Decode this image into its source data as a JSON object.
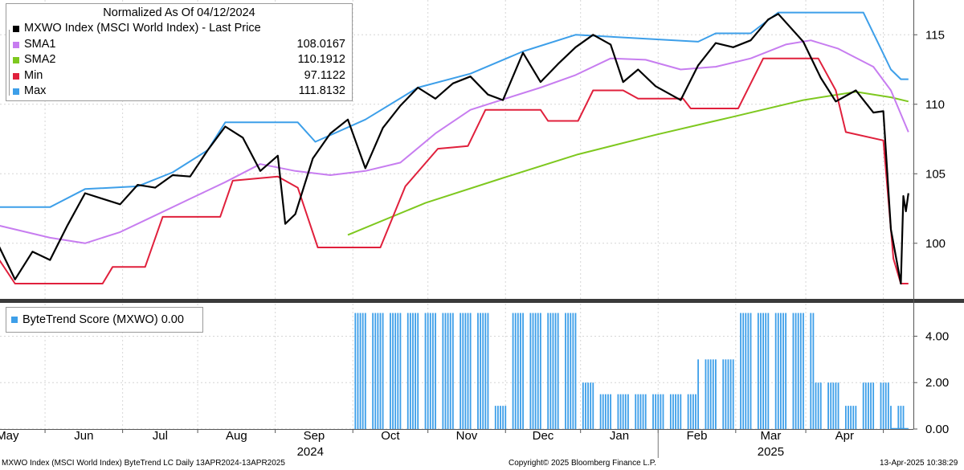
{
  "chart_data": [
    {
      "type": "line",
      "title": "Normalized As Of 04/12/2024",
      "x_axis": {
        "months": [
          "May",
          "Jun",
          "Jul",
          "Aug",
          "Sep",
          "Oct",
          "Nov",
          "Dec",
          "Jan",
          "Feb",
          "Mar",
          "Apr"
        ],
        "years": [
          "2024",
          "2025"
        ],
        "start": "2024-04-13",
        "end": "2025-04-13"
      },
      "ylim": [
        96,
        117.5
      ],
      "yticks": [
        100,
        105,
        110,
        115
      ],
      "series": [
        {
          "name": "MXWO Index (MSCI World Index) - Last Price",
          "color": "#000000",
          "legend_value": "",
          "points": [
            [
              "2024-04-12",
              100
            ],
            [
              "2024-04-19",
              97.4
            ],
            [
              "2024-04-26",
              99.4
            ],
            [
              "2024-05-03",
              98.8
            ],
            [
              "2024-05-10",
              101.3
            ],
            [
              "2024-05-17",
              103.6
            ],
            [
              "2024-05-24",
              103.2
            ],
            [
              "2024-05-31",
              102.8
            ],
            [
              "2024-06-07",
              104.2
            ],
            [
              "2024-06-14",
              104.0
            ],
            [
              "2024-06-21",
              104.9
            ],
            [
              "2024-06-28",
              104.8
            ],
            [
              "2024-07-05",
              106.7
            ],
            [
              "2024-07-12",
              108.4
            ],
            [
              "2024-07-19",
              107.6
            ],
            [
              "2024-07-26",
              105.2
            ],
            [
              "2024-08-02",
              106.3
            ],
            [
              "2024-08-05",
              101.4
            ],
            [
              "2024-08-09",
              102.1
            ],
            [
              "2024-08-16",
              106.1
            ],
            [
              "2024-08-23",
              107.9
            ],
            [
              "2024-08-30",
              108.9
            ],
            [
              "2024-09-06",
              105.4
            ],
            [
              "2024-09-13",
              108.3
            ],
            [
              "2024-09-20",
              109.9
            ],
            [
              "2024-09-27",
              111.2
            ],
            [
              "2024-10-04",
              110.4
            ],
            [
              "2024-10-11",
              111.5
            ],
            [
              "2024-10-18",
              112.0
            ],
            [
              "2024-10-25",
              110.7
            ],
            [
              "2024-10-31",
              110.3
            ],
            [
              "2024-11-08",
              113.7
            ],
            [
              "2024-11-15",
              111.6
            ],
            [
              "2024-11-22",
              112.9
            ],
            [
              "2024-11-29",
              114.1
            ],
            [
              "2024-12-06",
              115.0
            ],
            [
              "2024-12-13",
              114.3
            ],
            [
              "2024-12-18",
              111.6
            ],
            [
              "2024-12-24",
              112.5
            ],
            [
              "2024-12-31",
              111.3
            ],
            [
              "2025-01-10",
              110.3
            ],
            [
              "2025-01-17",
              112.8
            ],
            [
              "2025-01-24",
              114.4
            ],
            [
              "2025-01-31",
              114.1
            ],
            [
              "2025-02-07",
              114.6
            ],
            [
              "2025-02-14",
              116.1
            ],
            [
              "2025-02-18",
              116.5
            ],
            [
              "2025-02-28",
              114.5
            ],
            [
              "2025-03-07",
              111.9
            ],
            [
              "2025-03-13",
              110.2
            ],
            [
              "2025-03-21",
              111.0
            ],
            [
              "2025-03-28",
              109.4
            ],
            [
              "2025-04-01",
              109.5
            ],
            [
              "2025-04-04",
              101.0
            ],
            [
              "2025-04-08",
              97.1
            ],
            [
              "2025-04-09",
              103.4
            ],
            [
              "2025-04-10",
              102.3
            ],
            [
              "2025-04-11",
              103.6
            ]
          ]
        },
        {
          "name": "SMA1",
          "color": "#c77df0",
          "legend_value": "108.0167",
          "points": [
            [
              "2024-04-12",
              101.3
            ],
            [
              "2024-05-03",
              100.4
            ],
            [
              "2024-05-17",
              100.0
            ],
            [
              "2024-05-31",
              100.8
            ],
            [
              "2024-06-14",
              102.0
            ],
            [
              "2024-06-28",
              103.2
            ],
            [
              "2024-07-12",
              104.4
            ],
            [
              "2024-07-26",
              105.7
            ],
            [
              "2024-08-09",
              105.2
            ],
            [
              "2024-08-23",
              104.9
            ],
            [
              "2024-09-06",
              105.2
            ],
            [
              "2024-09-20",
              105.8
            ],
            [
              "2024-10-04",
              107.9
            ],
            [
              "2024-10-18",
              109.6
            ],
            [
              "2024-11-01",
              110.4
            ],
            [
              "2024-11-15",
              111.2
            ],
            [
              "2024-11-29",
              112.1
            ],
            [
              "2024-12-13",
              113.3
            ],
            [
              "2024-12-27",
              113.2
            ],
            [
              "2025-01-10",
              112.5
            ],
            [
              "2025-01-24",
              112.7
            ],
            [
              "2025-02-07",
              113.3
            ],
            [
              "2025-02-21",
              114.3
            ],
            [
              "2025-03-03",
              114.6
            ],
            [
              "2025-03-14",
              114.0
            ],
            [
              "2025-03-28",
              112.7
            ],
            [
              "2025-04-04",
              111.0
            ],
            [
              "2025-04-11",
              108.0
            ]
          ]
        },
        {
          "name": "SMA2",
          "color": "#7ec81f",
          "legend_value": "110.1912",
          "points": [
            [
              "2024-08-30",
              100.6
            ],
            [
              "2024-09-30",
              102.9
            ],
            [
              "2024-10-31",
              104.7
            ],
            [
              "2024-11-30",
              106.4
            ],
            [
              "2024-12-31",
              107.8
            ],
            [
              "2025-01-31",
              109.1
            ],
            [
              "2025-02-28",
              110.3
            ],
            [
              "2025-03-21",
              110.9
            ],
            [
              "2025-04-04",
              110.5
            ],
            [
              "2025-04-11",
              110.2
            ]
          ]
        },
        {
          "name": "Min",
          "color": "#e0203c",
          "legend_value": "97.1122",
          "points": [
            [
              "2024-04-12",
              99.0
            ],
            [
              "2024-04-19",
              97.1
            ],
            [
              "2024-05-24",
              97.1
            ],
            [
              "2024-05-28",
              98.3
            ],
            [
              "2024-06-10",
              98.3
            ],
            [
              "2024-06-17",
              101.9
            ],
            [
              "2024-07-10",
              101.9
            ],
            [
              "2024-07-15",
              104.5
            ],
            [
              "2024-08-02",
              104.8
            ],
            [
              "2024-08-10",
              104.0
            ],
            [
              "2024-08-18",
              99.7
            ],
            [
              "2024-09-12",
              99.7
            ],
            [
              "2024-09-22",
              104.1
            ],
            [
              "2024-10-05",
              106.8
            ],
            [
              "2024-10-17",
              107.0
            ],
            [
              "2024-10-24",
              109.6
            ],
            [
              "2024-11-15",
              109.6
            ],
            [
              "2024-11-18",
              108.8
            ],
            [
              "2024-11-30",
              108.8
            ],
            [
              "2024-12-06",
              111.0
            ],
            [
              "2024-12-18",
              111.0
            ],
            [
              "2024-12-24",
              110.4
            ],
            [
              "2025-01-11",
              110.4
            ],
            [
              "2025-01-14",
              109.7
            ],
            [
              "2025-02-02",
              109.7
            ],
            [
              "2025-02-12",
              113.3
            ],
            [
              "2025-03-06",
              113.3
            ],
            [
              "2025-03-13",
              111.0
            ],
            [
              "2025-03-17",
              108.0
            ],
            [
              "2025-04-01",
              107.4
            ],
            [
              "2025-04-05",
              98.9
            ],
            [
              "2025-04-08",
              97.1
            ],
            [
              "2025-04-11",
              97.1
            ]
          ]
        },
        {
          "name": "Max",
          "color": "#3d9fe9",
          "legend_value": "111.8132",
          "points": [
            [
              "2024-04-12",
              102.6
            ],
            [
              "2024-05-03",
              102.6
            ],
            [
              "2024-05-17",
              103.9
            ],
            [
              "2024-06-07",
              104.1
            ],
            [
              "2024-06-21",
              105.1
            ],
            [
              "2024-07-05",
              106.7
            ],
            [
              "2024-07-12",
              108.7
            ],
            [
              "2024-08-10",
              108.7
            ],
            [
              "2024-08-17",
              107.3
            ],
            [
              "2024-09-06",
              108.9
            ],
            [
              "2024-09-27",
              111.2
            ],
            [
              "2024-10-18",
              112.2
            ],
            [
              "2024-11-08",
              113.8
            ],
            [
              "2024-11-29",
              115.0
            ],
            [
              "2025-01-17",
              114.5
            ],
            [
              "2025-01-24",
              115.1
            ],
            [
              "2025-02-07",
              115.1
            ],
            [
              "2025-02-18",
              116.6
            ],
            [
              "2025-03-24",
              116.6
            ],
            [
              "2025-03-31",
              114.0
            ],
            [
              "2025-04-04",
              112.5
            ],
            [
              "2025-04-08",
              111.8
            ],
            [
              "2025-04-11",
              111.8
            ]
          ]
        }
      ]
    },
    {
      "type": "bar",
      "title": "ByteTrend Score (MXWO) 0.00",
      "ylim": [
        0,
        5.4
      ],
      "yticks": [
        "0.00",
        "2.00",
        "4.00"
      ],
      "color": "#3d9fe9",
      "score_periods": [
        [
          "2024-04-12",
          0
        ],
        [
          "2024-09-02",
          5
        ],
        [
          "2024-10-28",
          1
        ],
        [
          "2024-11-04",
          5
        ],
        [
          "2024-12-02",
          2
        ],
        [
          "2024-12-09",
          1.5
        ],
        [
          "2025-01-17",
          3
        ],
        [
          "2025-02-03",
          5
        ],
        [
          "2025-03-05",
          2
        ],
        [
          "2025-03-17",
          1
        ],
        [
          "2025-03-24",
          2
        ],
        [
          "2025-04-04",
          1
        ],
        [
          "2025-04-10",
          0
        ]
      ]
    }
  ],
  "legend": {
    "title": "Normalized As Of 04/12/2024",
    "rows": [
      {
        "name": "MXWO Index (MSCI World Index) - Last Price",
        "value": "",
        "color": "#000000"
      },
      {
        "name": "SMA1",
        "value": "108.0167",
        "color": "#c77df0"
      },
      {
        "name": "SMA2",
        "value": "110.1912",
        "color": "#7ec81f"
      },
      {
        "name": "Min",
        "value": "97.1122",
        "color": "#e0203c"
      },
      {
        "name": "Max",
        "value": "111.8132",
        "color": "#3d9fe9"
      }
    ]
  },
  "score_legend": {
    "label": "ByteTrend Score (MXWO) 0.00"
  },
  "footer": {
    "left": "MXWO Index (MSCI World Index) ByteTrend LC  Daily 13APR2024-13APR2025",
    "center": "Copyright© 2025 Bloomberg Finance L.P.",
    "right": "13-Apr-2025 10:38:29"
  }
}
